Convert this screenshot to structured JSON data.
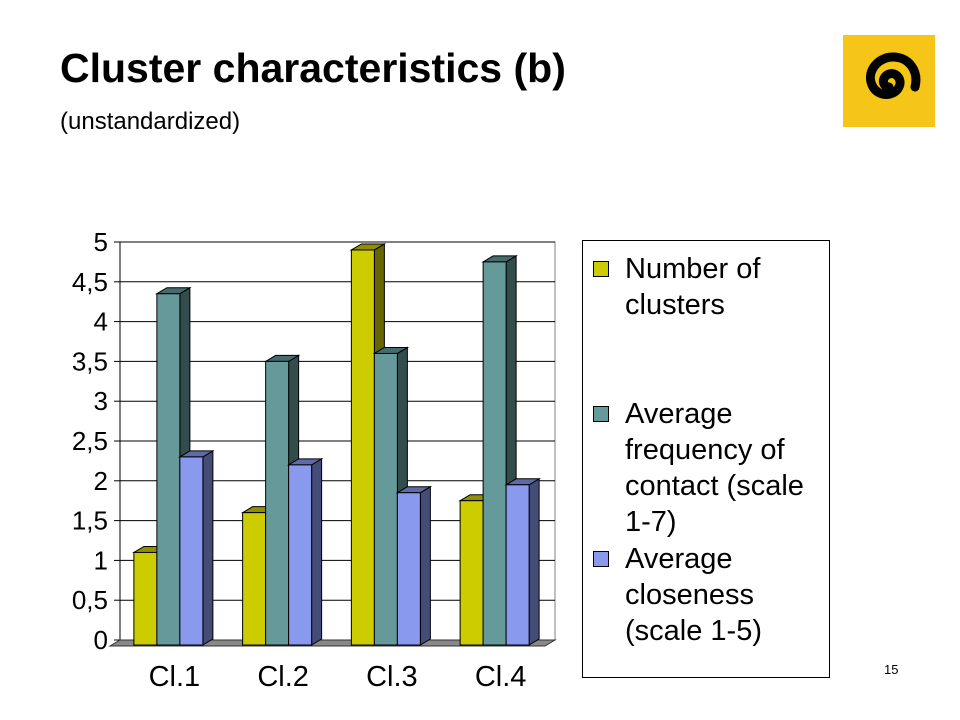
{
  "slide": {
    "title": "Cluster characteristics (b)",
    "subtitle": "(unstandardized)",
    "page_number": "15",
    "logo": {
      "icon": "spiral-logo-icon",
      "background": "#f5c518",
      "foreground": "#000000"
    }
  },
  "chart_data": {
    "type": "bar",
    "categories": [
      "Cl.1",
      "Cl.2",
      "Cl.3",
      "Cl.4"
    ],
    "series": [
      {
        "name": "Number of clusters",
        "values": [
          1.1,
          1.6,
          4.9,
          1.75
        ],
        "color": "#cccc00"
      },
      {
        "name": "Average frequency of contact (scale 1-7)",
        "values": [
          4.35,
          3.5,
          3.6,
          4.75
        ],
        "color": "#669999"
      },
      {
        "name": "Average closeness (scale 1-5)",
        "values": [
          2.3,
          2.2,
          1.85,
          1.95
        ],
        "color": "#8899ee"
      }
    ],
    "ylim": [
      0,
      5
    ],
    "yticks": [
      "0",
      "0,5",
      "1",
      "1,5",
      "2",
      "2,5",
      "3",
      "3,5",
      "4",
      "4,5",
      "5"
    ],
    "grid": true,
    "legend_position": "right",
    "title": "",
    "xlabel": "",
    "ylabel": ""
  }
}
